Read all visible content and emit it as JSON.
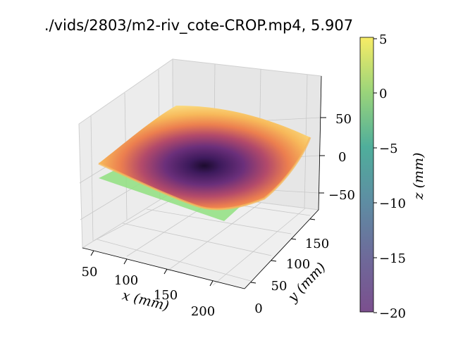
{
  "title": "./vids/2803/m2-riv_cote-CROP.mp4, 5.907",
  "chart_data": {
    "type": "surface3d",
    "title": "./vids/2803/m2-riv_cote-CROP.mp4, 5.907",
    "x_axis": {
      "label": "x (mm)",
      "ticks": [
        "50",
        "100",
        "150",
        "200"
      ],
      "range": [
        30,
        225
      ]
    },
    "y_axis": {
      "label": "y (mm)",
      "ticks": [
        "0",
        "50",
        "100",
        "150"
      ],
      "range": [
        -10,
        185
      ]
    },
    "z_axis": {
      "ticks": [
        "50",
        "0",
        "−50"
      ],
      "range": [
        -80,
        80
      ]
    },
    "surfaces": [
      {
        "name": "",
        "kind": "curved bowl, inferno colormap",
        "z_center_min": -30,
        "z_corner_max": 35
      },
      {
        "name": "",
        "kind": "flat reference plane",
        "color": "#90e080",
        "z": -25
      }
    ],
    "colorbar": {
      "label": "z (mm)",
      "ticks": [
        "5",
        "0",
        "−5",
        "−10",
        "−15",
        "−20"
      ],
      "range": [
        -20,
        5
      ],
      "colormap": "viridis"
    },
    "grid": true
  }
}
